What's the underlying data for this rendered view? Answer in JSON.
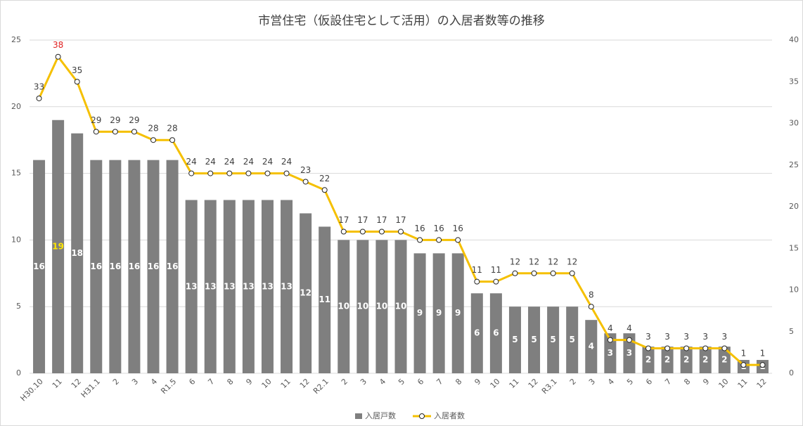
{
  "chart_data": {
    "type": "bar_line",
    "title": "市営住宅（仮設住宅として活用）の入居者数等の推移",
    "categories": [
      "H30.10",
      "11",
      "12",
      "H31.1",
      "2",
      "3",
      "4",
      "R1.5",
      "6",
      "7",
      "8",
      "9",
      "10",
      "11",
      "12",
      "R2.1",
      "2",
      "3",
      "4",
      "5",
      "6",
      "7",
      "8",
      "9",
      "10",
      "11",
      "12",
      "R3.1",
      "2",
      "3",
      "4",
      "5",
      "6",
      "7",
      "8",
      "9",
      "10",
      "11",
      "12"
    ],
    "series": [
      {
        "name": "入居戸数",
        "type": "bar",
        "color": "#7f7f7f",
        "label_color": "#ffffff",
        "highlight": {
          "1": "#ffe600"
        },
        "values": [
          16,
          19,
          18,
          16,
          16,
          16,
          16,
          16,
          13,
          13,
          13,
          13,
          13,
          13,
          12,
          11,
          10,
          10,
          10,
          10,
          9,
          9,
          9,
          6,
          6,
          5,
          5,
          5,
          5,
          4,
          3,
          3,
          2,
          2,
          2,
          2,
          2,
          1,
          1
        ]
      },
      {
        "name": "入居者数",
        "type": "line",
        "axis": "y2",
        "color": "#f5c000",
        "label_color": "#404040",
        "highlight": {
          "1": "#e02020"
        },
        "values": [
          33,
          38,
          35,
          29,
          29,
          29,
          28,
          28,
          24,
          24,
          24,
          24,
          24,
          24,
          23,
          22,
          17,
          17,
          17,
          17,
          16,
          16,
          16,
          11,
          11,
          12,
          12,
          12,
          12,
          8,
          4,
          4,
          3,
          3,
          3,
          3,
          3,
          1,
          1
        ]
      }
    ],
    "ylim": [
      0,
      25
    ],
    "yticks": [
      0,
      5,
      10,
      15,
      20,
      25
    ],
    "y2lim": [
      0,
      40
    ],
    "y2ticks": [
      0,
      5,
      10,
      15,
      20,
      25,
      30,
      35,
      40
    ],
    "grid": true,
    "legend": "bottom"
  }
}
